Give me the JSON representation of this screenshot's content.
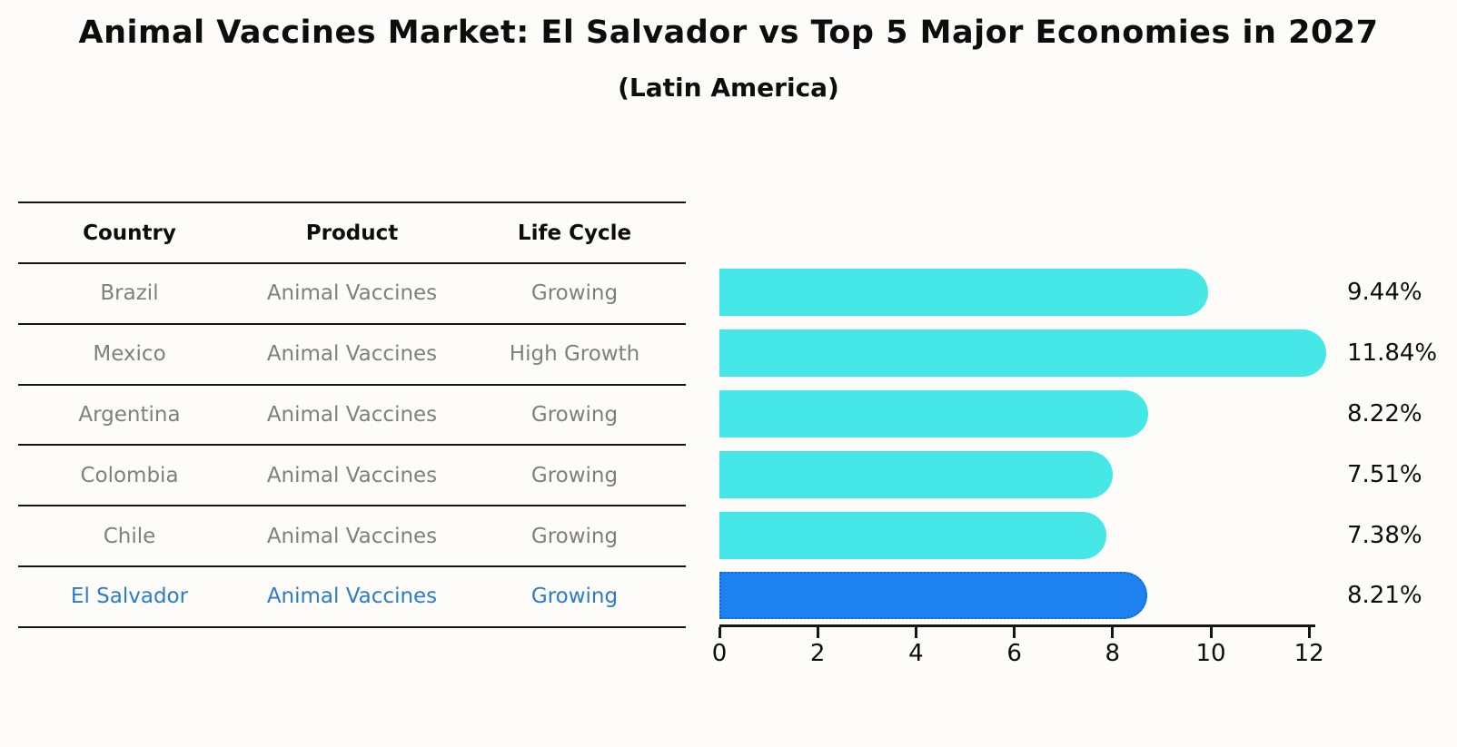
{
  "header": {
    "title": "Animal Vaccines Market: El Salvador vs Top 5 Major Economies in 2027",
    "subtitle": "(Latin America)"
  },
  "table": {
    "columns": [
      "Country",
      "Product",
      "Life Cycle"
    ],
    "rows": [
      {
        "country": "Brazil",
        "product": "Animal Vaccines",
        "life_cycle": "Growing",
        "highlight": false
      },
      {
        "country": "Mexico",
        "product": "Animal Vaccines",
        "life_cycle": "High Growth",
        "highlight": false
      },
      {
        "country": "Argentina",
        "product": "Animal Vaccines",
        "life_cycle": "Growing",
        "highlight": false
      },
      {
        "country": "Colombia",
        "product": "Animal Vaccines",
        "life_cycle": "Growing",
        "highlight": false
      },
      {
        "country": "Chile",
        "product": "Animal Vaccines",
        "life_cycle": "Growing",
        "highlight": false
      },
      {
        "country": "El Salvador",
        "product": "Animal Vaccines",
        "life_cycle": "Growing",
        "highlight": true
      }
    ]
  },
  "chart_data": {
    "type": "bar",
    "orientation": "horizontal",
    "title": "Animal Vaccines Market: El Salvador vs Top 5 Major Economies in 2027",
    "subtitle": "(Latin America)",
    "categories": [
      "Brazil",
      "Mexico",
      "Argentina",
      "Colombia",
      "Chile",
      "El Salvador"
    ],
    "values": [
      9.44,
      11.84,
      8.22,
      7.51,
      7.38,
      8.21
    ],
    "value_labels": [
      "9.44%",
      "11.84%",
      "8.22%",
      "7.51%",
      "7.38%",
      "8.21%"
    ],
    "xlabel": "",
    "ylabel": "",
    "xlim": [
      0,
      12.4
    ],
    "x_ticks": [
      0,
      2,
      4,
      6,
      8,
      10,
      12
    ],
    "x_tick_labels": [
      "0",
      "2",
      "4",
      "6",
      "8",
      "10",
      "12"
    ],
    "grid": false,
    "legend": "none",
    "highlight_index": 5
  },
  "colors": {
    "bar": "#45e8e6",
    "highlight_bar": "#1e82f0",
    "highlight_border": "#1467d2",
    "highlight_text": "#2b7bce",
    "table_text": "#7f7f7f",
    "heading_text": "#0d0d0d",
    "background": "#fdfcf9"
  }
}
